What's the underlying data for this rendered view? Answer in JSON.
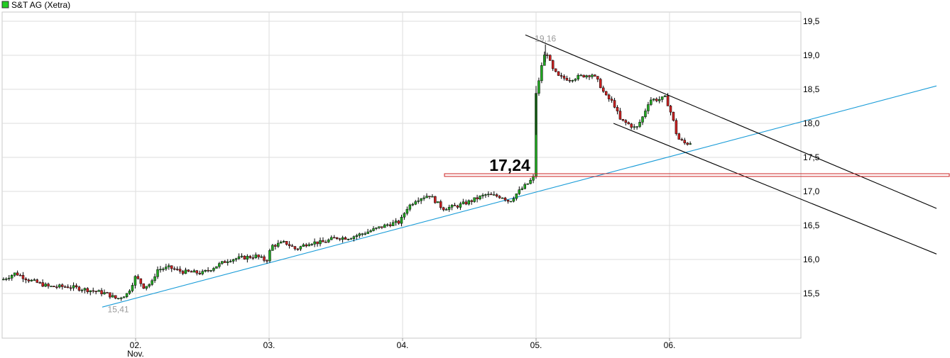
{
  "chart_data": {
    "type": "candlestick",
    "legend": {
      "label": "S&T AG (Xetra)",
      "color": "#22cc22",
      "placement": "top-left"
    },
    "x": {
      "tick_labels": [
        "02.",
        "03.",
        "04.",
        "05.",
        "06."
      ],
      "sublabel": "Nov."
    },
    "y": {
      "range": [
        15.0,
        19.6
      ],
      "ticks": [
        "19,5",
        "19,0",
        "18,5",
        "18,0",
        "17,5",
        "17,0",
        "16,5",
        "16,0",
        "15,5"
      ],
      "tick_values": [
        19.5,
        19.0,
        18.5,
        18.0,
        17.5,
        17.0,
        16.5,
        16.0,
        15.5
      ],
      "side": "right"
    },
    "grid": true,
    "colors": {
      "up": "#22aa22",
      "down": "#cc2222",
      "wick": "#000000",
      "support": "#1a9cd8",
      "channel": "#000000",
      "resistance_band": "#cc2222"
    },
    "annotations": {
      "high_label": "19,16",
      "low_label": "15,41",
      "level_label": "17,24"
    },
    "levels": {
      "high": 19.16,
      "low": 15.41,
      "band": [
        17.22,
        17.26
      ]
    },
    "anchors": [
      {
        "d": 0.0,
        "v": 15.7
      },
      {
        "d": 0.1,
        "v": 15.8
      },
      {
        "d": 0.2,
        "v": 15.7
      },
      {
        "d": 0.35,
        "v": 15.6
      },
      {
        "d": 0.5,
        "v": 15.6
      },
      {
        "d": 0.65,
        "v": 15.55
      },
      {
        "d": 0.78,
        "v": 15.5
      },
      {
        "d": 0.86,
        "v": 15.42
      },
      {
        "d": 0.94,
        "v": 15.5
      },
      {
        "d": 1.0,
        "v": 15.75
      },
      {
        "d": 1.06,
        "v": 15.6
      },
      {
        "d": 1.12,
        "v": 15.65
      },
      {
        "d": 1.16,
        "v": 15.85
      },
      {
        "d": 1.25,
        "v": 15.88
      },
      {
        "d": 1.35,
        "v": 15.82
      },
      {
        "d": 1.5,
        "v": 15.8
      },
      {
        "d": 1.7,
        "v": 16.0
      },
      {
        "d": 1.9,
        "v": 16.05
      },
      {
        "d": 1.98,
        "v": 15.98
      },
      {
        "d": 2.02,
        "v": 16.2
      },
      {
        "d": 2.12,
        "v": 16.25
      },
      {
        "d": 2.2,
        "v": 16.15
      },
      {
        "d": 2.3,
        "v": 16.25
      },
      {
        "d": 2.4,
        "v": 16.25
      },
      {
        "d": 2.5,
        "v": 16.32
      },
      {
        "d": 2.6,
        "v": 16.32
      },
      {
        "d": 2.7,
        "v": 16.38
      },
      {
        "d": 2.8,
        "v": 16.45
      },
      {
        "d": 2.9,
        "v": 16.52
      },
      {
        "d": 2.98,
        "v": 16.55
      },
      {
        "d": 3.03,
        "v": 16.75
      },
      {
        "d": 3.1,
        "v": 16.88
      },
      {
        "d": 3.2,
        "v": 16.95
      },
      {
        "d": 3.25,
        "v": 16.85
      },
      {
        "d": 3.3,
        "v": 16.75
      },
      {
        "d": 3.4,
        "v": 16.78
      },
      {
        "d": 3.5,
        "v": 16.85
      },
      {
        "d": 3.62,
        "v": 16.95
      },
      {
        "d": 3.75,
        "v": 16.92
      },
      {
        "d": 3.8,
        "v": 16.85
      },
      {
        "d": 3.86,
        "v": 16.98
      },
      {
        "d": 3.94,
        "v": 17.12
      },
      {
        "d": 3.99,
        "v": 17.22
      },
      {
        "d": 4.0,
        "v": 18.45
      },
      {
        "d": 4.02,
        "v": 18.6
      },
      {
        "d": 4.05,
        "v": 18.95
      },
      {
        "d": 4.08,
        "v": 19.05
      },
      {
        "d": 4.12,
        "v": 18.8
      },
      {
        "d": 4.17,
        "v": 18.68
      },
      {
        "d": 4.25,
        "v": 18.65
      },
      {
        "d": 4.35,
        "v": 18.7
      },
      {
        "d": 4.42,
        "v": 18.72
      },
      {
        "d": 4.47,
        "v": 18.6
      },
      {
        "d": 4.52,
        "v": 18.4
      },
      {
        "d": 4.58,
        "v": 18.3
      },
      {
        "d": 4.63,
        "v": 18.05
      },
      {
        "d": 4.7,
        "v": 17.98
      },
      {
        "d": 4.75,
        "v": 17.92
      },
      {
        "d": 4.8,
        "v": 18.1
      },
      {
        "d": 4.85,
        "v": 18.35
      },
      {
        "d": 4.92,
        "v": 18.35
      },
      {
        "d": 4.97,
        "v": 18.38
      },
      {
        "d": 5.02,
        "v": 18.1
      },
      {
        "d": 5.06,
        "v": 17.78
      },
      {
        "d": 5.12,
        "v": 17.7
      },
      {
        "d": 5.16,
        "v": 17.72
      }
    ],
    "trendlines": [
      {
        "name": "support",
        "p1": {
          "d": 0.75,
          "v": 15.3
        },
        "p2": {
          "d": 7.0,
          "v": 18.55
        }
      },
      {
        "name": "channel-upper",
        "p1": {
          "d": 3.92,
          "v": 19.3
        },
        "p2": {
          "d": 7.0,
          "v": 16.75
        }
      },
      {
        "name": "channel-lower",
        "p1": {
          "d": 4.58,
          "v": 18.0
        },
        "p2": {
          "d": 7.0,
          "v": 16.08
        }
      }
    ]
  }
}
